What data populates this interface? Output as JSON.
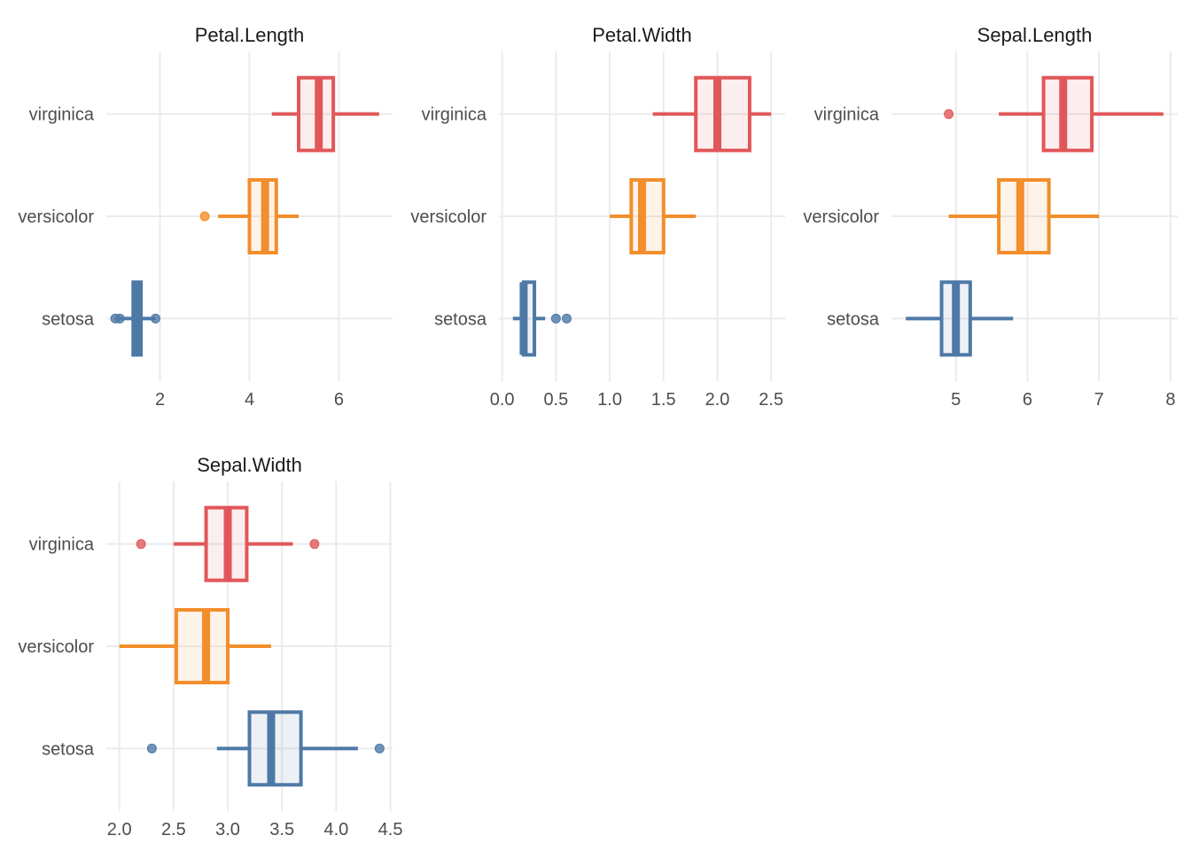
{
  "chart_data": {
    "type": "boxplot",
    "orientation": "horizontal",
    "categories": [
      "setosa",
      "versicolor",
      "virginica"
    ],
    "colors": {
      "setosa": "#4e79a7",
      "versicolor": "#f28e2b",
      "virginica": "#e15759"
    },
    "panels": [
      {
        "title": "Petal.Length",
        "xlim": [
          0.8,
          7.2
        ],
        "xticks": [
          2,
          4,
          6
        ],
        "xtick_labels": [
          "2",
          "4",
          "6"
        ],
        "boxes": [
          {
            "group": "setosa",
            "min": 1.1,
            "q1": 1.4,
            "median": 1.5,
            "q3": 1.575,
            "max": 1.9,
            "outliers": [
              1.0,
              1.1,
              1.9
            ]
          },
          {
            "group": "versicolor",
            "min": 3.3,
            "q1": 4.0,
            "median": 4.35,
            "q3": 4.6,
            "max": 5.1,
            "outliers": [
              3.0
            ]
          },
          {
            "group": "virginica",
            "min": 4.5,
            "q1": 5.1,
            "median": 5.55,
            "q3": 5.875,
            "max": 6.9,
            "outliers": []
          }
        ]
      },
      {
        "title": "Petal.Width",
        "xlim": [
          -0.03,
          2.63
        ],
        "xticks": [
          0.0,
          0.5,
          1.0,
          1.5,
          2.0,
          2.5
        ],
        "xtick_labels": [
          "0.0",
          "0.5",
          "1.0",
          "1.5",
          "2.0",
          "2.5"
        ],
        "boxes": [
          {
            "group": "setosa",
            "min": 0.1,
            "q1": 0.2,
            "median": 0.2,
            "q3": 0.3,
            "max": 0.4,
            "outliers": [
              0.5,
              0.6
            ]
          },
          {
            "group": "versicolor",
            "min": 1.0,
            "q1": 1.2,
            "median": 1.3,
            "q3": 1.5,
            "max": 1.8,
            "outliers": []
          },
          {
            "group": "virginica",
            "min": 1.4,
            "q1": 1.8,
            "median": 2.0,
            "q3": 2.3,
            "max": 2.5,
            "outliers": []
          }
        ]
      },
      {
        "title": "Sepal.Length",
        "xlim": [
          4.1,
          8.1
        ],
        "xticks": [
          5,
          6,
          7,
          8
        ],
        "xtick_labels": [
          "5",
          "6",
          "7",
          "8"
        ],
        "boxes": [
          {
            "group": "setosa",
            "min": 4.3,
            "q1": 4.8,
            "median": 5.0,
            "q3": 5.2,
            "max": 5.8,
            "outliers": []
          },
          {
            "group": "versicolor",
            "min": 4.9,
            "q1": 5.6,
            "median": 5.9,
            "q3": 6.3,
            "max": 7.0,
            "outliers": []
          },
          {
            "group": "virginica",
            "min": 5.6,
            "q1": 6.225,
            "median": 6.5,
            "q3": 6.9,
            "max": 7.9,
            "outliers": [
              4.9
            ]
          }
        ]
      },
      {
        "title": "Sepal.Width",
        "xlim": [
          1.88,
          4.52
        ],
        "xticks": [
          2.0,
          2.5,
          3.0,
          3.5,
          4.0,
          4.5
        ],
        "xtick_labels": [
          "2.0",
          "2.5",
          "3.0",
          "3.5",
          "4.0",
          "4.5"
        ],
        "boxes": [
          {
            "group": "setosa",
            "min": 2.9,
            "q1": 3.2,
            "median": 3.4,
            "q3": 3.675,
            "max": 4.2,
            "outliers": [
              2.3,
              4.4
            ]
          },
          {
            "group": "versicolor",
            "min": 2.0,
            "q1": 2.525,
            "median": 2.8,
            "q3": 3.0,
            "max": 3.4,
            "outliers": []
          },
          {
            "group": "virginica",
            "min": 2.5,
            "q1": 2.8,
            "median": 3.0,
            "q3": 3.175,
            "max": 3.6,
            "outliers": [
              2.2,
              3.8
            ]
          }
        ]
      }
    ]
  }
}
